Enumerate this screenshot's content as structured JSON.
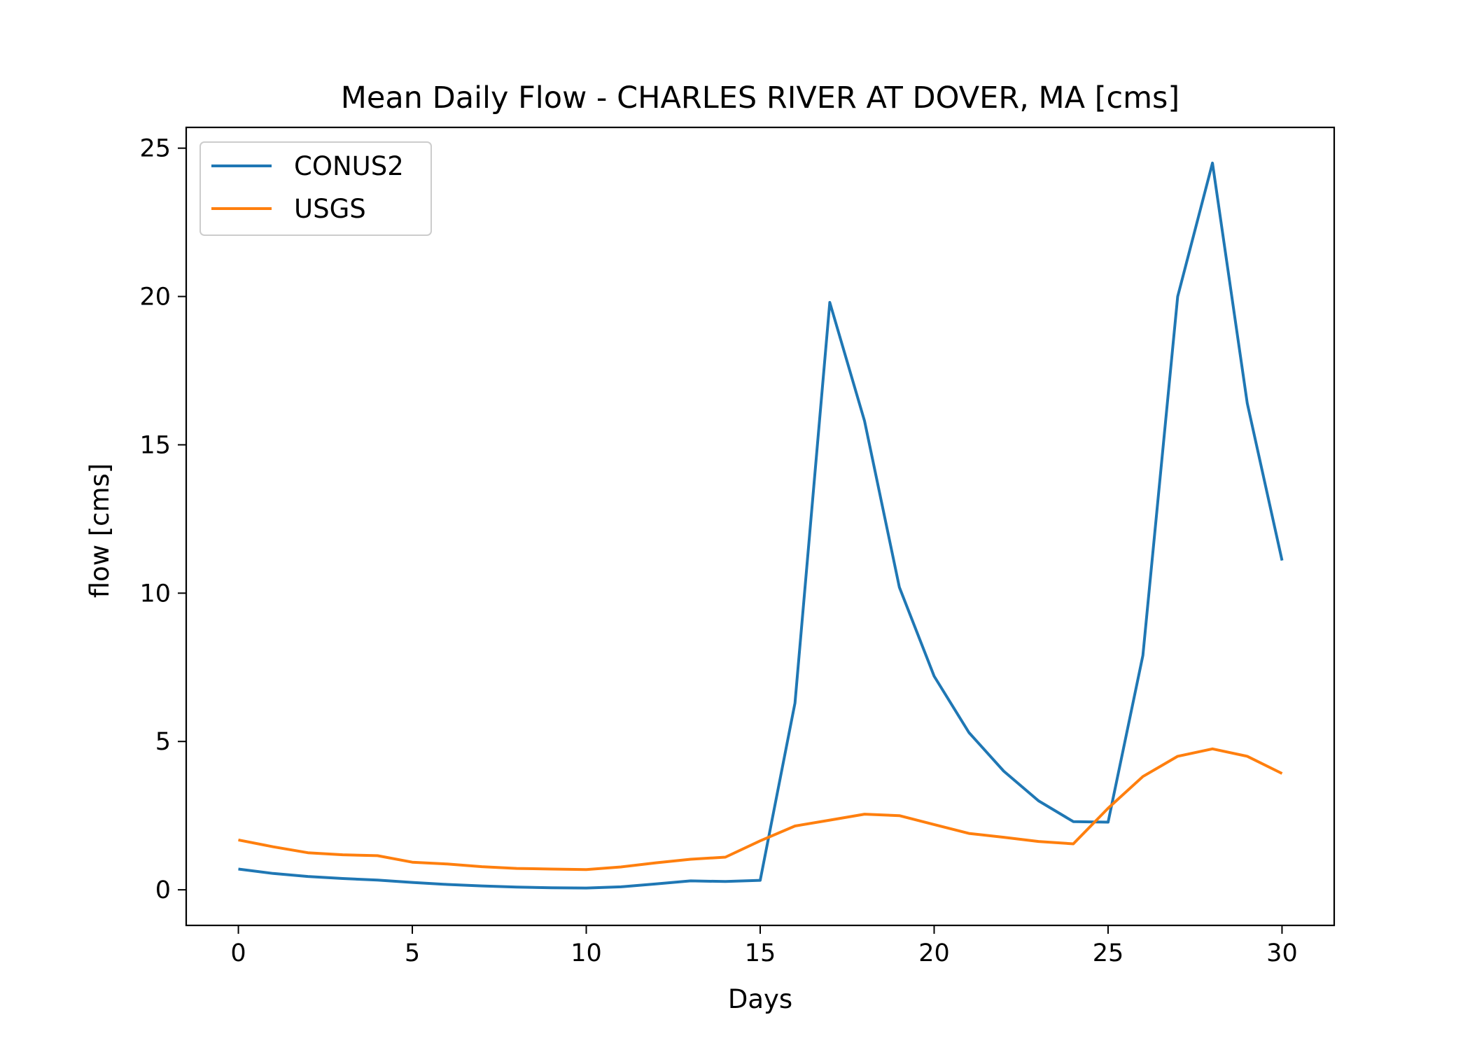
{
  "chart_data": {
    "type": "line",
    "title": "Mean Daily Flow - CHARLES RIVER AT DOVER, MA [cms]",
    "xlabel": "Days",
    "ylabel": "flow [cms]",
    "xlim": [
      -1.5,
      31.5
    ],
    "ylim": [
      -1.2,
      25.7
    ],
    "xticks": [
      0,
      5,
      10,
      15,
      20,
      25,
      30
    ],
    "yticks": [
      0,
      5,
      10,
      15,
      20,
      25
    ],
    "grid": false,
    "legend_position": "upper-left",
    "x": [
      0,
      1,
      2,
      3,
      4,
      5,
      6,
      7,
      8,
      9,
      10,
      11,
      12,
      13,
      14,
      15,
      16,
      17,
      18,
      19,
      20,
      21,
      22,
      23,
      24,
      25,
      26,
      27,
      28,
      29,
      30
    ],
    "series": [
      {
        "name": "CONUS2",
        "color": "#1f77b4",
        "values": [
          0.7,
          0.55,
          0.45,
          0.38,
          0.33,
          0.25,
          0.18,
          0.13,
          0.09,
          0.07,
          0.06,
          0.1,
          0.2,
          0.3,
          0.28,
          0.32,
          6.3,
          19.8,
          15.8,
          10.2,
          7.2,
          5.3,
          4.0,
          3.0,
          2.3,
          2.28,
          7.9,
          20.0,
          24.5,
          16.4,
          11.1
        ]
      },
      {
        "name": "USGS",
        "color": "#ff7f0e",
        "values": [
          1.68,
          1.45,
          1.25,
          1.18,
          1.15,
          0.93,
          0.87,
          0.78,
          0.72,
          0.7,
          0.68,
          0.77,
          0.91,
          1.03,
          1.1,
          1.65,
          2.15,
          2.35,
          2.55,
          2.5,
          2.2,
          1.9,
          1.77,
          1.63,
          1.55,
          2.75,
          3.82,
          4.5,
          4.75,
          4.5,
          3.92
        ]
      }
    ]
  }
}
